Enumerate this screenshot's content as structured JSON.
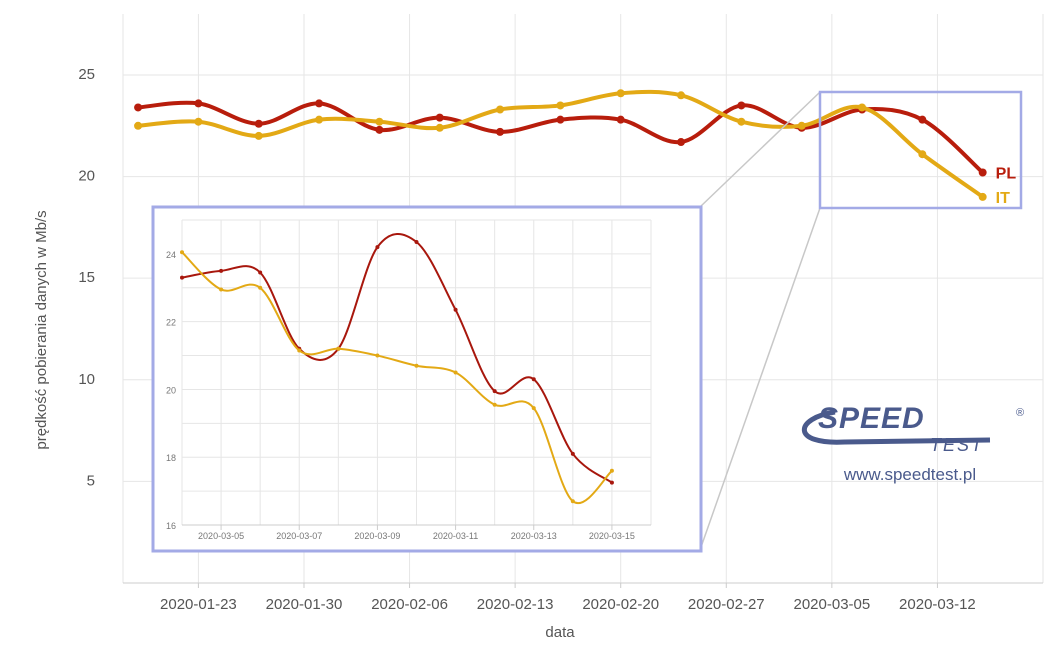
{
  "chart_data": [
    {
      "type": "line",
      "xlabel": "data",
      "ylabel": "prędkość pobierania danych w Mb/s",
      "x_ticks": [
        "2020-01-23",
        "2020-01-30",
        "2020-02-06",
        "2020-02-13",
        "2020-02-20",
        "2020-02-27",
        "2020-03-05",
        "2020-03-12"
      ],
      "y_ticks": [
        5,
        10,
        15,
        20,
        25
      ],
      "xlim": [
        "2020-01-18",
        "2020-03-19"
      ],
      "ylim": [
        0,
        28
      ],
      "grid": true,
      "legend": "end-of-line labels",
      "x": [
        "2020-01-19",
        "2020-01-23",
        "2020-01-27",
        "2020-01-31",
        "2020-02-04",
        "2020-02-08",
        "2020-02-12",
        "2020-02-16",
        "2020-02-20",
        "2020-02-24",
        "2020-02-28",
        "2020-03-03",
        "2020-03-07",
        "2020-03-11",
        "2020-03-15"
      ],
      "series": [
        {
          "name": "PL",
          "color": "#b81d0c",
          "values": [
            23.4,
            23.6,
            22.6,
            23.6,
            22.3,
            22.9,
            22.2,
            22.8,
            22.8,
            21.7,
            23.5,
            22.4,
            23.3,
            22.8,
            20.2
          ]
        },
        {
          "name": "IT",
          "color": "#e3a915",
          "values": [
            22.5,
            22.7,
            22.0,
            22.8,
            22.7,
            22.4,
            23.3,
            23.5,
            24.1,
            24.0,
            22.7,
            22.5,
            23.4,
            21.1,
            19.0
          ]
        }
      ]
    },
    {
      "type": "line",
      "title": "",
      "x_ticks": [
        "2020-03-05",
        "2020-03-07",
        "2020-03-09",
        "2020-03-11",
        "2020-03-13",
        "2020-03-15"
      ],
      "y_ticks": [
        16,
        18,
        20,
        22,
        24
      ],
      "xlim": [
        "2020-03-04",
        "2020-03-16"
      ],
      "ylim": [
        16,
        25
      ],
      "grid": true,
      "x": [
        "2020-03-04",
        "2020-03-05",
        "2020-03-06",
        "2020-03-07",
        "2020-03-08",
        "2020-03-09",
        "2020-03-10",
        "2020-03-11",
        "2020-03-12",
        "2020-03-13",
        "2020-03-14",
        "2020-03-15"
      ],
      "series": [
        {
          "color": "#a8170d",
          "values": [
            23.3,
            23.5,
            23.45,
            21.2,
            21.2,
            24.2,
            24.35,
            22.35,
            19.95,
            20.3,
            18.1,
            17.25
          ]
        },
        {
          "color": "#e3a915",
          "values": [
            24.05,
            22.95,
            23.0,
            21.15,
            21.2,
            21.0,
            20.7,
            20.5,
            19.55,
            19.45,
            16.7,
            17.6
          ]
        }
      ]
    }
  ],
  "zoom_box_color": "#a3aae6",
  "logo": {
    "text_top": "SPEED",
    "text_bottom": "TEST",
    "registered": "®",
    "url": "www.speedtest.pl",
    "color": "#4a5a8c"
  }
}
